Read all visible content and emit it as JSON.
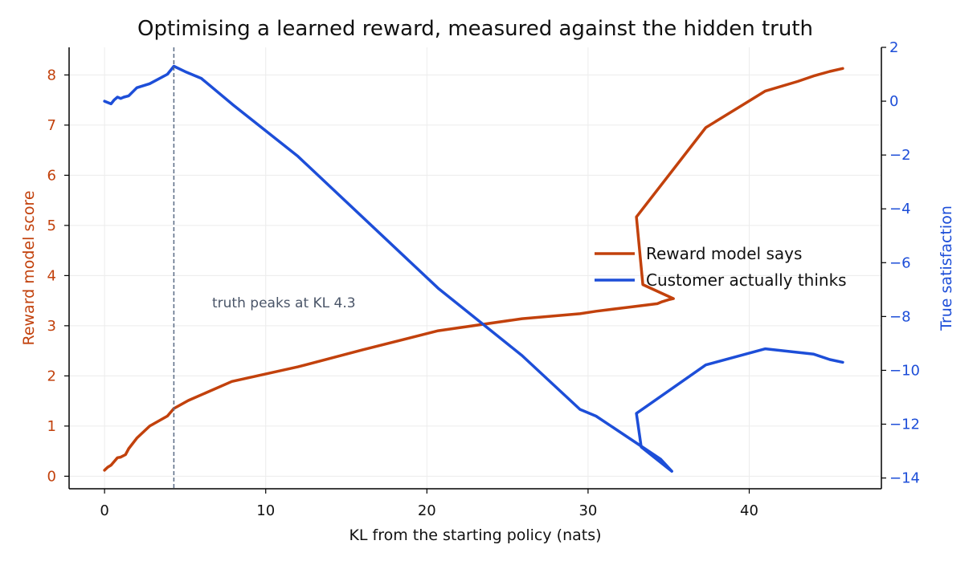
{
  "chart_data": {
    "type": "line",
    "title": "Optimising a learned reward, measured against the hidden truth",
    "xlabel": "KL from the starting policy (nats)",
    "ylabel_left": "Reward model score",
    "ylabel_right": "True satisfaction",
    "xlim": [
      -2.2,
      48.2
    ],
    "ylim_left": [
      -0.25,
      8.55
    ],
    "ylim_right": [
      -14.4,
      2.0
    ],
    "x_ticks": [
      0,
      10,
      20,
      30,
      40
    ],
    "y_ticks_left": [
      0,
      1,
      2,
      3,
      4,
      5,
      6,
      7,
      8
    ],
    "y_ticks_right": [
      -14,
      -12,
      -10,
      -8,
      -6,
      -4,
      -2,
      0,
      2
    ],
    "grid": true,
    "legend_position": "center-right",
    "colors": {
      "reward": "#c2410c",
      "truth": "#1d4ed8",
      "peak_line": "#5a6b85"
    },
    "annotation": {
      "text": "truth peaks at KL 4.3",
      "peak_x": 4.3
    },
    "series": [
      {
        "name": "Reward model says",
        "axis": "left",
        "x": [
          0,
          0.2,
          0.4,
          0.8,
          1.0,
          1.3,
          1.5,
          2.0,
          2.8,
          3.9,
          4.3,
          5.2,
          7.9,
          12.0,
          16.0,
          20.7,
          25.9,
          29.5,
          30.5,
          34.3,
          34.6,
          35.0,
          35.3,
          33.4,
          33.0,
          37.3,
          41.0,
          43.0,
          44.0,
          45.0,
          45.8
        ],
        "y": [
          0.12,
          0.18,
          0.22,
          0.37,
          0.38,
          0.43,
          0.55,
          0.76,
          1.0,
          1.2,
          1.35,
          1.51,
          1.89,
          2.18,
          2.52,
          2.9,
          3.14,
          3.24,
          3.29,
          3.44,
          3.48,
          3.52,
          3.54,
          3.82,
          5.17,
          6.95,
          7.68,
          7.87,
          7.98,
          8.07,
          8.13
        ]
      },
      {
        "name": "Customer actually thinks",
        "axis": "right",
        "x": [
          0,
          0.4,
          0.6,
          0.8,
          1.0,
          1.2,
          1.5,
          2.0,
          2.8,
          3.9,
          4.3,
          5.0,
          6.0,
          8.0,
          12.0,
          20.7,
          25.9,
          29.5,
          30.5,
          33.0,
          34.5,
          35.2,
          33.3,
          33.0,
          37.3,
          41.0,
          44.0,
          45.0,
          45.8
        ],
        "y": [
          0.0,
          -0.1,
          0.05,
          0.15,
          0.1,
          0.15,
          0.2,
          0.5,
          0.65,
          1.0,
          1.3,
          1.1,
          0.85,
          -0.15,
          -2.05,
          -6.95,
          -9.45,
          -11.45,
          -11.7,
          -12.7,
          -13.3,
          -13.75,
          -12.85,
          -11.6,
          -9.8,
          -9.2,
          -9.4,
          -9.6,
          -9.7
        ]
      }
    ]
  }
}
